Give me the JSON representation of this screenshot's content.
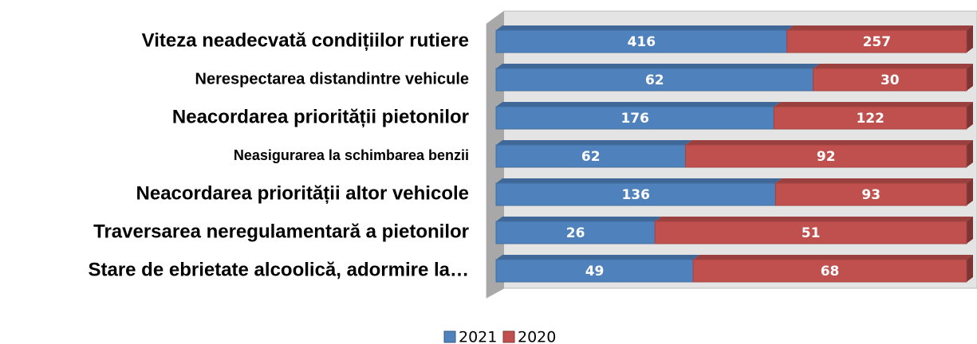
{
  "chart_data": {
    "type": "bar",
    "orientation": "horizontal",
    "stacking": "percent",
    "categories": [
      "Viteza neadecvată condițiilor rutiere",
      "Nerespectarea distandintre vehicule",
      "Neacordarea priorității pietonilor",
      "Neasigurarea la schimbarea benzii",
      "Neacordarea priorității altor vehicole",
      "Traversarea neregulamentară a pietonilor",
      "Stare de ebrietate alcoolică, adormire la…"
    ],
    "series": [
      {
        "name": "2021",
        "color": "#4f81bd",
        "values": [
          416,
          62,
          176,
          62,
          136,
          26,
          49
        ]
      },
      {
        "name": "2020",
        "color": "#c0504d",
        "values": [
          257,
          30,
          122,
          92,
          93,
          51,
          68
        ]
      }
    ],
    "legend": "bottom"
  }
}
